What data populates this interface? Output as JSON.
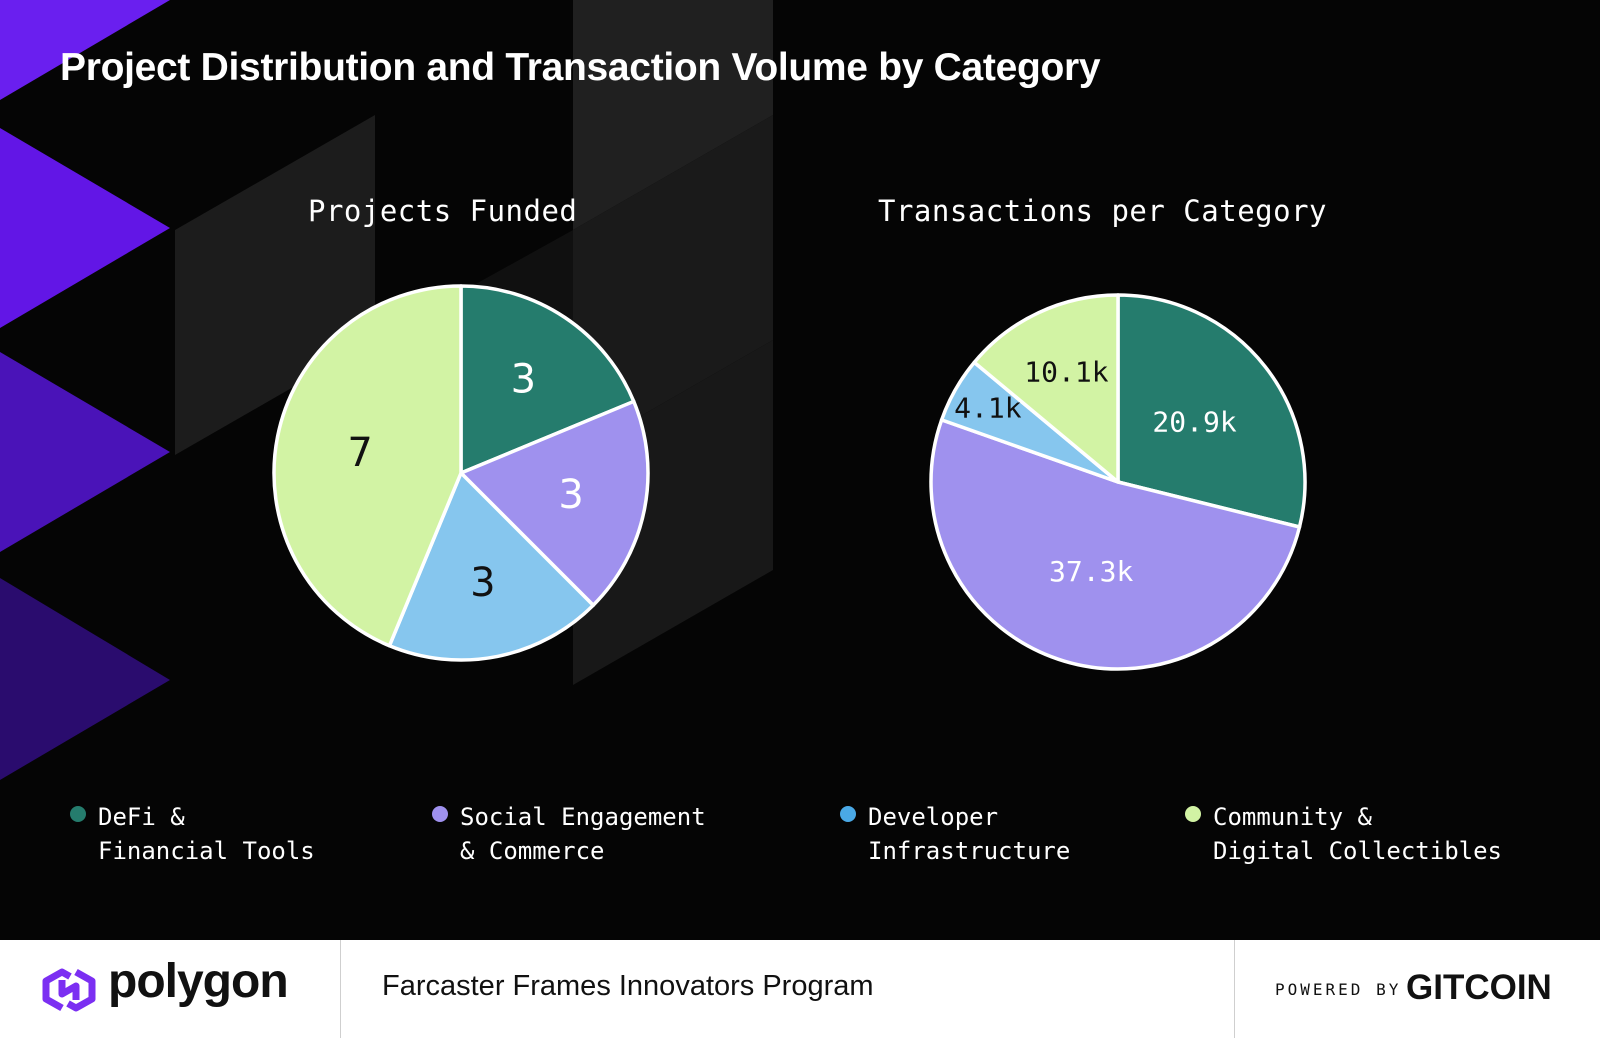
{
  "title": "Project Distribution and Transaction Volume by Category",
  "colors": {
    "defi": "#257c6d",
    "social": "#9f91ee",
    "developer": "#86c6ee",
    "community": "#d2f3a4",
    "developer_dot": "#4aa9e6",
    "background": "#050505",
    "accent_purple": "#6a1fef"
  },
  "chart_data": [
    {
      "type": "pie",
      "title": "Projects Funded",
      "categories": [
        "DeFi & Financial Tools",
        "Social Engagement & Commerce",
        "Developer Infrastructure",
        "Community & Digital Collectibles"
      ],
      "values": [
        3,
        3,
        3,
        7
      ],
      "labels": [
        "3",
        "3",
        "3",
        "7"
      ],
      "start_angle_deg": 0,
      "direction": "clockwise"
    },
    {
      "type": "pie",
      "title": "Transactions per Category",
      "categories": [
        "DeFi & Financial Tools",
        "Social Engagement & Commerce",
        "Developer Infrastructure",
        "Community & Digital Collectibles"
      ],
      "values": [
        20900,
        37300,
        4100,
        10100
      ],
      "labels": [
        "20.9k",
        "37.3k",
        "4.1k",
        "10.1k"
      ],
      "start_angle_deg": 0,
      "direction": "clockwise"
    }
  ],
  "legend": [
    {
      "line1": "DeFi &",
      "line2": "Financial Tools",
      "color_key": "defi"
    },
    {
      "line1": "Social Engagement",
      "line2": "& Commerce",
      "color_key": "social"
    },
    {
      "line1": "Developer",
      "line2": "Infrastructure",
      "color_key": "developer_dot"
    },
    {
      "line1": "Community &",
      "line2": "Digital Collectibles",
      "color_key": "community"
    }
  ],
  "footer": {
    "brand": "polygon",
    "program": "Farcaster Frames Innovators Program",
    "powered_by": "POWERED BY",
    "gitcoin": "GITCOIN"
  }
}
